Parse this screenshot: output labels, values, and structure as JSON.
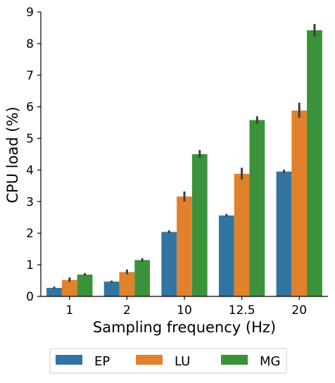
{
  "chart_data": {
    "type": "bar",
    "title": "",
    "xlabel": "Sampling frequency (Hz)",
    "ylabel": "CPU load (%)",
    "categories": [
      "1",
      "2",
      "10",
      "12.5",
      "20"
    ],
    "ylim": [
      0,
      9
    ],
    "yticks": [
      "0",
      "1",
      "2",
      "3",
      "4",
      "5",
      "6",
      "7",
      "8",
      "9"
    ],
    "grid": false,
    "legend": {
      "placement": "bottom-center",
      "entries": [
        "EP",
        "LU",
        "MG"
      ]
    },
    "series": [
      {
        "name": "EP",
        "color": "#3274a1",
        "values": [
          0.27,
          0.47,
          2.04,
          2.56,
          3.95
        ],
        "err_low": [
          0.24,
          0.44,
          2.0,
          2.52,
          3.9
        ],
        "err_high": [
          0.31,
          0.5,
          2.09,
          2.61,
          4.01
        ]
      },
      {
        "name": "LU",
        "color": "#e1812c",
        "values": [
          0.52,
          0.77,
          3.16,
          3.88,
          5.88
        ],
        "err_low": [
          0.46,
          0.7,
          3.0,
          3.7,
          5.65
        ],
        "err_high": [
          0.6,
          0.85,
          3.32,
          4.07,
          6.13
        ]
      },
      {
        "name": "MG",
        "color": "#3a923a",
        "values": [
          0.69,
          1.15,
          4.5,
          5.58,
          8.42
        ],
        "err_low": [
          0.65,
          1.1,
          4.38,
          5.47,
          8.22
        ],
        "err_high": [
          0.74,
          1.21,
          4.63,
          5.7,
          8.62
        ]
      }
    ]
  }
}
